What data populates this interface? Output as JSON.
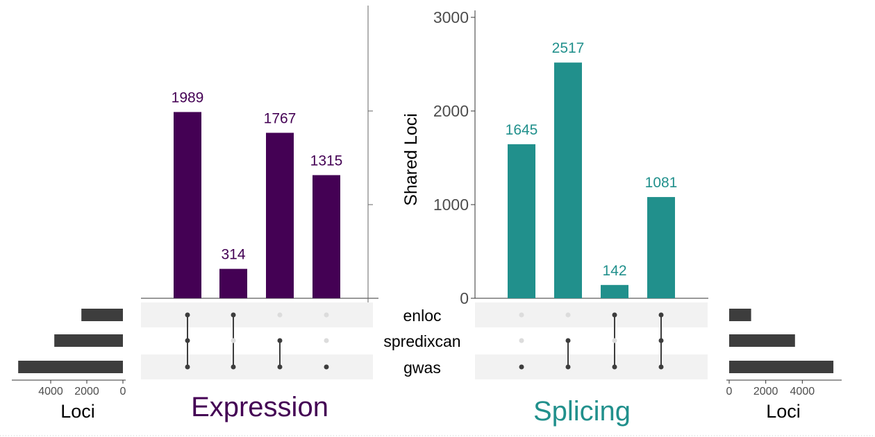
{
  "chart_data": [
    {
      "type": "bar",
      "panel": "expression",
      "title": "Expression",
      "color": "#440154",
      "sets": [
        "enloc",
        "spredixcan",
        "gwas"
      ],
      "intersections": [
        {
          "members": [
            "enloc",
            "spredixcan",
            "gwas"
          ],
          "value": 1989,
          "label": "1989"
        },
        {
          "members": [
            "enloc",
            "gwas"
          ],
          "value": 314,
          "label": "314"
        },
        {
          "members": [
            "spredixcan",
            "gwas"
          ],
          "value": 1767,
          "label": "1767"
        },
        {
          "members": [
            "gwas"
          ],
          "value": 1315,
          "label": "1315"
        }
      ],
      "ylim": [
        0,
        3000
      ],
      "set_sizes": {
        "xlabel": "Loci",
        "values": [
          2300,
          3800,
          5800
        ],
        "ticks": [
          4000,
          2000,
          0
        ],
        "tick_labels": [
          "4000",
          "2000",
          "0"
        ],
        "xlim": [
          0,
          6000
        ],
        "color": "#3d3d3d",
        "orientation": "reversed"
      }
    },
    {
      "type": "bar",
      "panel": "splicing",
      "title": "Splicing",
      "color": "#21908c",
      "ylabel": "Shared Loci",
      "sets": [
        "enloc",
        "spredixcan",
        "gwas"
      ],
      "intersections": [
        {
          "members": [
            "gwas"
          ],
          "value": 1645,
          "label": "1645"
        },
        {
          "members": [
            "spredixcan",
            "gwas"
          ],
          "value": 2517,
          "label": "2517"
        },
        {
          "members": [
            "enloc",
            "gwas"
          ],
          "value": 142,
          "label": "142"
        },
        {
          "members": [
            "enloc",
            "spredixcan",
            "gwas"
          ],
          "value": 1081,
          "label": "1081"
        }
      ],
      "ylim": [
        0,
        3000
      ],
      "yticks": [
        0,
        1000,
        2000,
        3000
      ],
      "ytick_labels": [
        "0",
        "1000",
        "2000",
        "3000"
      ],
      "set_sizes": {
        "xlabel": "Loci",
        "values": [
          1200,
          3600,
          5700
        ],
        "ticks": [
          0,
          2000,
          4000
        ],
        "tick_labels": [
          "0",
          "2000",
          "4000"
        ],
        "xlim": [
          0,
          6000
        ],
        "color": "#3d3d3d",
        "orientation": "normal"
      }
    }
  ]
}
